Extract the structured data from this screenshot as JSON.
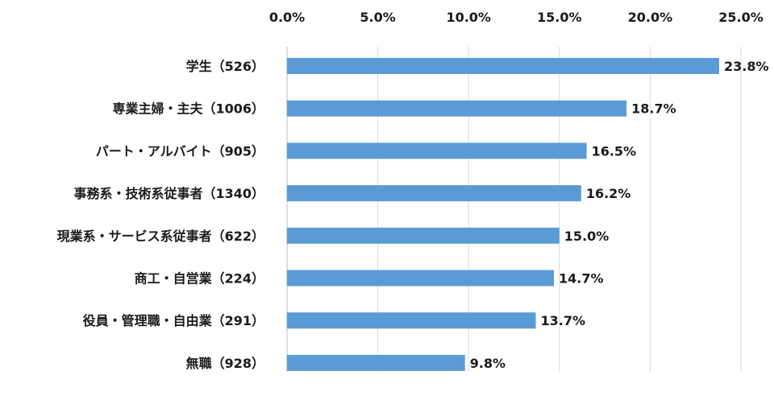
{
  "chart_data": {
    "type": "bar",
    "orientation": "horizontal",
    "categories": [
      "学生（526）",
      "専業主婦・主夫（1006）",
      "パート・アルバイト（905）",
      "事務系・技術系従事者（1340）",
      "現業系・サービス系従事者（622）",
      "商工・自営業（224）",
      "役員・管理職・自由業（291）",
      "無職（928）"
    ],
    "values": [
      23.8,
      18.7,
      16.5,
      16.2,
      15.0,
      14.7,
      13.7,
      9.8
    ],
    "value_labels": [
      "23.8%",
      "18.7%",
      "16.5%",
      "16.2%",
      "15.0%",
      "14.7%",
      "13.7%",
      "9.8%"
    ],
    "x_ticks": [
      0,
      5,
      10,
      15,
      20,
      25
    ],
    "x_tick_labels": [
      "0.0%",
      "5.0%",
      "10.0%",
      "15.0%",
      "20.0%",
      "25.0%"
    ],
    "xlim": [
      0,
      25
    ],
    "x_axis_position": "top",
    "grid": true,
    "legend": "none",
    "bar_color": "#5b9bd5",
    "title": "",
    "xlabel": "",
    "ylabel": ""
  }
}
